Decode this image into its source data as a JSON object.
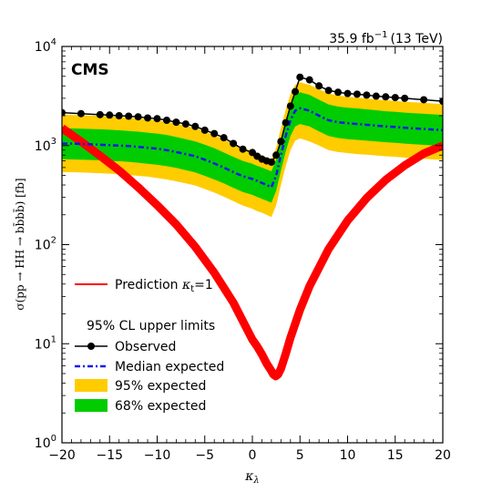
{
  "chart_data": {
    "type": "line",
    "x": [
      -20,
      -18,
      -16,
      -15,
      -14,
      -13,
      -12,
      -11,
      -10,
      -9,
      -8,
      -7,
      -6,
      -5,
      -4,
      -3,
      -2,
      -1,
      0,
      0.5,
      1,
      1.5,
      2,
      2.5,
      3,
      3.5,
      4,
      4.5,
      5,
      6,
      7,
      8,
      9,
      10,
      11,
      12,
      13,
      14,
      15,
      16,
      18,
      20
    ],
    "series": [
      {
        "name": "Observed",
        "color": "#000000",
        "values": [
          2150,
          2100,
          2050,
          2030,
          2000,
          1980,
          1950,
          1900,
          1870,
          1800,
          1720,
          1650,
          1560,
          1430,
          1320,
          1200,
          1050,
          920,
          850,
          780,
          730,
          700,
          680,
          800,
          1100,
          1700,
          2500,
          3500,
          4900,
          4600,
          4000,
          3600,
          3450,
          3350,
          3300,
          3230,
          3150,
          3100,
          3050,
          3000,
          2900,
          2800
        ]
      },
      {
        "name": "Median expected",
        "color": "#1515ee",
        "values": [
          1050,
          1040,
          1020,
          1010,
          1000,
          990,
          970,
          950,
          930,
          900,
          860,
          820,
          780,
          720,
          660,
          600,
          540,
          490,
          460,
          440,
          420,
          400,
          380,
          500,
          800,
          1250,
          1800,
          2250,
          2380,
          2250,
          2000,
          1800,
          1720,
          1680,
          1650,
          1620,
          1590,
          1560,
          1540,
          1510,
          1470,
          1430
        ]
      }
    ],
    "bands": [
      {
        "name": "95% expected",
        "color": "#ffcc00",
        "lower": [
          540,
          535,
          525,
          520,
          515,
          505,
          495,
          485,
          470,
          455,
          435,
          415,
          395,
          365,
          335,
          305,
          275,
          248,
          230,
          218,
          210,
          200,
          190,
          250,
          400,
          620,
          900,
          1120,
          1180,
          1100,
          1000,
          900,
          860,
          840,
          820,
          810,
          795,
          780,
          770,
          755,
          735,
          715
        ],
        "upper": [
          2050,
          2020,
          1990,
          1970,
          1940,
          1910,
          1880,
          1840,
          1800,
          1740,
          1660,
          1580,
          1500,
          1390,
          1270,
          1150,
          1040,
          940,
          880,
          840,
          800,
          760,
          730,
          950,
          1500,
          2300,
          3300,
          4100,
          4350,
          4100,
          3700,
          3350,
          3200,
          3100,
          3050,
          2980,
          2920,
          2860,
          2820,
          2760,
          2700,
          2620
        ]
      },
      {
        "name": "68% expected",
        "color": "#00cc00",
        "lower": [
          730,
          720,
          710,
          700,
          695,
          685,
          670,
          655,
          640,
          620,
          595,
          565,
          535,
          495,
          455,
          415,
          375,
          340,
          318,
          303,
          290,
          278,
          265,
          350,
          560,
          870,
          1250,
          1560,
          1650,
          1560,
          1390,
          1250,
          1190,
          1160,
          1140,
          1120,
          1100,
          1080,
          1065,
          1045,
          1015,
          990
        ],
        "upper": [
          1500,
          1480,
          1460,
          1445,
          1425,
          1405,
          1380,
          1350,
          1320,
          1280,
          1220,
          1160,
          1100,
          1020,
          940,
          850,
          770,
          700,
          655,
          625,
          600,
          575,
          550,
          720,
          1150,
          1800,
          2600,
          3250,
          3450,
          3250,
          2900,
          2600,
          2470,
          2410,
          2370,
          2320,
          2270,
          2220,
          2190,
          2150,
          2090,
          2040
        ]
      }
    ],
    "prediction": {
      "name": "Prediction",
      "color": "#ff0000",
      "x": [
        -20,
        -18,
        -16,
        -14,
        -12,
        -10,
        -8,
        -6,
        -4,
        -2,
        0,
        0.5,
        1,
        1.5,
        2,
        2.2,
        2.45,
        2.7,
        3,
        3.5,
        4,
        5,
        6,
        8,
        10,
        12,
        14,
        16,
        18,
        20
      ],
      "values": [
        1500,
        1100,
        790,
        560,
        380,
        250,
        160,
        95,
        52,
        26,
        11,
        9.4,
        7.8,
        6.3,
        5.3,
        4.9,
        4.7,
        4.9,
        5.6,
        7.9,
        11.5,
        22,
        38,
        90,
        175,
        295,
        450,
        630,
        830,
        1000
      ]
    },
    "title": "",
    "xlabel": "κλ",
    "ylabel": "σ(pp → HH → bb̄bb̄) [fb]",
    "xlim": [
      -20,
      20
    ],
    "ylim": [
      1,
      10000
    ],
    "log_y": true,
    "x_ticks": [
      -20,
      -15,
      -10,
      -5,
      0,
      5,
      10,
      15,
      20
    ],
    "y_ticks": [
      1,
      10,
      100,
      1000,
      10000
    ],
    "y_tick_labels": [
      {
        "base": "10",
        "exp": "0"
      },
      {
        "base": "10",
        "exp": "1"
      },
      {
        "base": "10",
        "exp": "2"
      },
      {
        "base": "10",
        "exp": "3"
      },
      {
        "base": "10",
        "exp": "4"
      }
    ],
    "grid": false,
    "legend_position": "bottom-left",
    "annotations": {
      "experiment": "CMS",
      "lumi": "35.9 fb",
      "lumi_exp": "−1",
      "energy": "(13 TeV)"
    },
    "legend": {
      "prediction_label": "Prediction",
      "prediction_kappa": "κ",
      "prediction_kappa_sub": "t",
      "prediction_value": "=1",
      "header": "95% CL upper limits",
      "observed": "Observed",
      "median": "Median expected",
      "band95": "95% expected",
      "band68": "68% expected"
    },
    "axis_labels": {
      "x_symbol": "κ",
      "x_sub": "λ",
      "y_text": "σ(pp → HH → bb̄bb̄) [fb]"
    }
  }
}
